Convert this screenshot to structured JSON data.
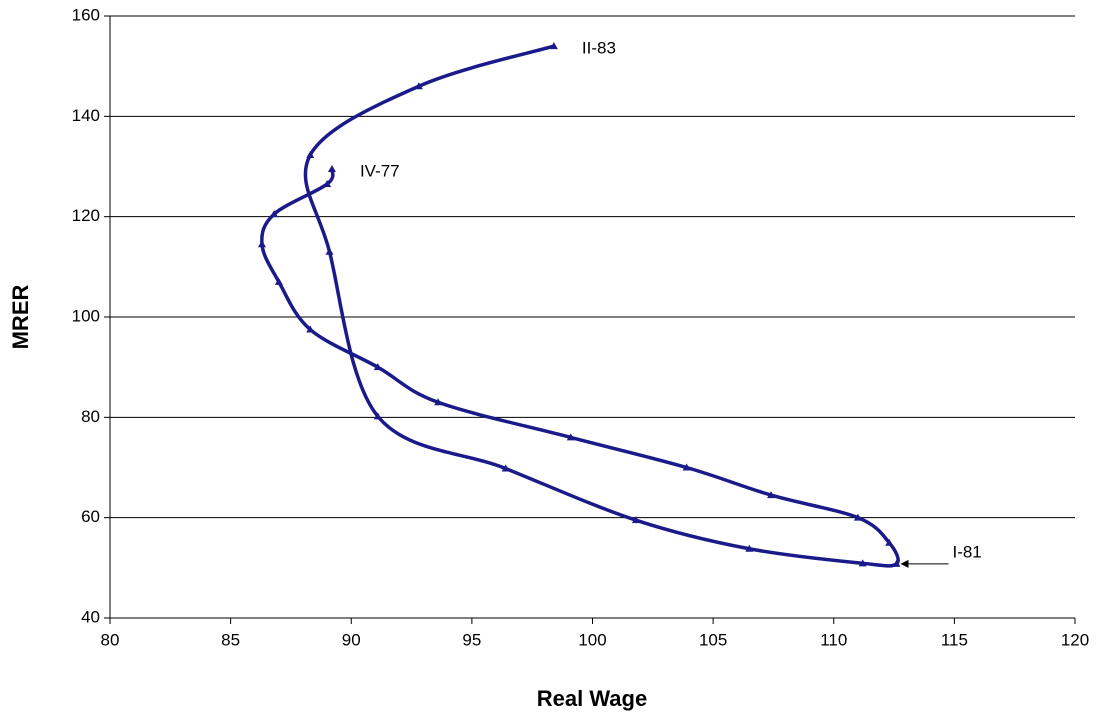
{
  "chart_data": {
    "type": "scatter-line",
    "x_label": "Real Wage",
    "y_label": "MRER",
    "xlim": [
      80,
      120
    ],
    "xticks": [
      80,
      85,
      90,
      95,
      100,
      105,
      110,
      115,
      120
    ],
    "ylim": [
      40,
      160
    ],
    "yticks": [
      40,
      60,
      80,
      100,
      120,
      140,
      160
    ],
    "grid": true,
    "series": [
      {
        "color": "#1a1a8a",
        "x": [
          89.2,
          89.0,
          86.8,
          86.3,
          87.0,
          88.3,
          91.1,
          93.6,
          99.1,
          103.9,
          107.4,
          111.0,
          112.3,
          112.6,
          111.2,
          106.5,
          101.8,
          96.4,
          91.1,
          89.1,
          88.3,
          92.8,
          98.4
        ],
        "values": [
          129.5,
          126.5,
          120.5,
          114.5,
          107,
          97.5,
          90,
          83,
          76,
          70,
          64.5,
          60,
          55,
          50.8,
          50.9,
          53.8,
          59.5,
          69.8,
          80.2,
          113,
          132.3,
          146,
          154
        ]
      }
    ],
    "annotations": [
      "IV-77",
      "I-81",
      "II-83"
    ]
  }
}
